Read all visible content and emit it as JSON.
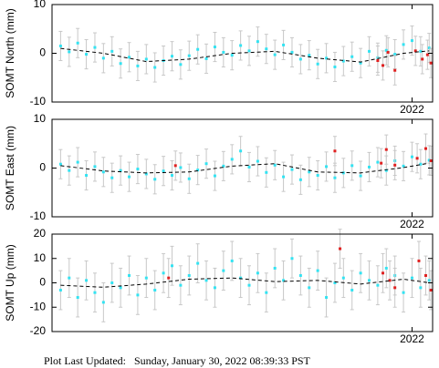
{
  "chart_data": [
    {
      "type": "scatter",
      "y_label": "SOMT North (mm)",
      "xlim": [
        2019.9,
        2022.12
      ],
      "xticks": [
        2022
      ],
      "ylim": [
        -10,
        10
      ],
      "yticks": [
        -10,
        0,
        10
      ],
      "series": [
        {
          "color": "#33e3f2",
          "error": 3,
          "x": [
            2019.95,
            2020.0,
            2020.05,
            2020.1,
            2020.15,
            2020.2,
            2020.25,
            2020.3,
            2020.35,
            2020.4,
            2020.45,
            2020.5,
            2020.55,
            2020.6,
            2020.65,
            2020.7,
            2020.75,
            2020.8,
            2020.85,
            2020.9,
            2020.95,
            2021.0,
            2021.05,
            2021.1,
            2021.15,
            2021.2,
            2021.25,
            2021.3,
            2021.35,
            2021.4,
            2021.45,
            2021.5,
            2021.55,
            2021.6,
            2021.65,
            2021.7,
            2021.75,
            2021.8,
            2021.85,
            2021.9,
            2021.95,
            2022.0,
            2022.05,
            2022.1
          ],
          "values": [
            1.5,
            0.3,
            2.1,
            -0.2,
            1.2,
            -1.0,
            0.4,
            -2.1,
            -0.8,
            -2.6,
            -1.2,
            -2.9,
            -1.5,
            -0.6,
            -2.3,
            -0.5,
            0.8,
            -1.1,
            1.3,
            0.2,
            -0.4,
            1.6,
            0.5,
            2.4,
            0.9,
            -0.3,
            1.7,
            0.2,
            -1.2,
            -0.4,
            -2.2,
            -1.0,
            -2.8,
            -1.6,
            -0.7,
            -2.0,
            0.4,
            -0.9,
            0.6,
            -0.2,
            1.8,
            2.6,
            0.4,
            1.1
          ]
        },
        {
          "color": "#e02020",
          "error": 3,
          "x": [
            2021.8,
            2021.83,
            2021.86,
            2021.9,
            2022.02,
            2022.06,
            2022.09,
            2022.11
          ],
          "values": [
            -1.5,
            -2.5,
            0.2,
            -3.5,
            0.5,
            -1.2,
            -0.3,
            -2.0
          ]
        },
        {
          "color": "#000000",
          "line": "dashed",
          "x": [
            2019.95,
            2020.2,
            2020.45,
            2020.7,
            2020.95,
            2021.2,
            2021.45,
            2021.7,
            2021.95,
            2022.1
          ],
          "values": [
            1,
            0,
            -1.7,
            -1.2,
            0,
            0.4,
            -1,
            -1.8,
            0,
            0.5
          ]
        }
      ]
    },
    {
      "type": "scatter",
      "y_label": "SOMT East (mm)",
      "xlim": [
        2019.9,
        2022.12
      ],
      "xticks": [
        2022
      ],
      "ylim": [
        -10,
        10
      ],
      "yticks": [
        -10,
        0,
        10
      ],
      "series": [
        {
          "color": "#33e3f2",
          "error": 3,
          "x": [
            2019.95,
            2020.0,
            2020.05,
            2020.1,
            2020.15,
            2020.2,
            2020.25,
            2020.3,
            2020.35,
            2020.4,
            2020.45,
            2020.5,
            2020.55,
            2020.6,
            2020.65,
            2020.7,
            2020.75,
            2020.8,
            2020.85,
            2020.9,
            2020.95,
            2021.0,
            2021.05,
            2021.1,
            2021.15,
            2021.2,
            2021.25,
            2021.3,
            2021.35,
            2021.4,
            2021.45,
            2021.5,
            2021.55,
            2021.6,
            2021.65,
            2021.7,
            2021.75,
            2021.8,
            2021.85,
            2021.9,
            2021.95,
            2022.0,
            2022.05,
            2022.1
          ],
          "values": [
            0.8,
            -0.5,
            1.2,
            -1.5,
            0.3,
            -0.8,
            -2.0,
            -0.5,
            -1.8,
            -0.2,
            -1.2,
            -2.3,
            -0.6,
            -1.5,
            0.1,
            -2.2,
            -0.4,
            0.9,
            -1.6,
            0.4,
            1.8,
            3.5,
            0.2,
            1.4,
            -0.9,
            0.6,
            -1.8,
            -0.3,
            -2.4,
            -0.8,
            -1.5,
            0.3,
            -2.0,
            -1.0,
            0.5,
            -1.6,
            0.2,
            1.2,
            -0.5,
            1.5,
            0.4,
            2.3,
            0.8,
            1.6
          ]
        },
        {
          "color": "#e02020",
          "error": 3,
          "x": [
            2020.62,
            2021.55,
            2021.82,
            2021.85,
            2021.9,
            2022.03,
            2022.08,
            2022.11
          ],
          "values": [
            0.5,
            3.5,
            1.0,
            3.8,
            0.6,
            2.0,
            4.0,
            1.5
          ]
        },
        {
          "color": "#000000",
          "line": "dashed",
          "x": [
            2019.95,
            2020.2,
            2020.45,
            2020.7,
            2020.95,
            2021.2,
            2021.45,
            2021.7,
            2021.95,
            2022.1
          ],
          "values": [
            0.5,
            -0.6,
            -1.0,
            -0.8,
            0.4,
            0.9,
            -0.8,
            -1.0,
            0.1,
            1.0
          ]
        }
      ]
    },
    {
      "type": "scatter",
      "y_label": "SOMT Up (mm)",
      "xlim": [
        2019.9,
        2022.12
      ],
      "xticks": [
        2022
      ],
      "ylim": [
        -20,
        20
      ],
      "yticks": [
        -20,
        -10,
        0,
        10,
        20
      ],
      "series": [
        {
          "color": "#33e3f2",
          "error": 8,
          "x": [
            2019.95,
            2020.0,
            2020.05,
            2020.1,
            2020.15,
            2020.2,
            2020.25,
            2020.3,
            2020.35,
            2020.4,
            2020.45,
            2020.5,
            2020.55,
            2020.6,
            2020.65,
            2020.7,
            2020.75,
            2020.8,
            2020.85,
            2020.9,
            2020.95,
            2021.0,
            2021.05,
            2021.1,
            2021.15,
            2021.2,
            2021.25,
            2021.3,
            2021.35,
            2021.4,
            2021.45,
            2021.5,
            2021.55,
            2021.6,
            2021.65,
            2021.7,
            2021.75,
            2021.8,
            2021.85,
            2021.9,
            2021.95,
            2022.0,
            2022.05,
            2022.1
          ],
          "values": [
            -3,
            2,
            -6,
            1,
            -4,
            -8,
            0,
            -2,
            3,
            -5,
            2,
            -3,
            4,
            7,
            -1,
            3,
            8,
            1,
            -2,
            5,
            9,
            2,
            -1,
            4,
            -4,
            6,
            1,
            10,
            3,
            -2,
            5,
            -6,
            0,
            2,
            -3,
            4,
            1,
            -1,
            6,
            3,
            -4,
            2,
            -2,
            1
          ]
        },
        {
          "color": "#e02020",
          "error": 8,
          "x": [
            2020.58,
            2021.58,
            2021.83,
            2021.87,
            2021.9,
            2022.04,
            2022.08,
            2022.11
          ],
          "values": [
            2,
            14,
            4,
            1,
            -2,
            9,
            3,
            -3
          ]
        },
        {
          "color": "#000000",
          "line": "dashed",
          "x": [
            2019.95,
            2020.2,
            2020.45,
            2020.7,
            2020.95,
            2021.2,
            2021.45,
            2021.7,
            2021.95,
            2022.1
          ],
          "values": [
            -1,
            -1.8,
            -0.5,
            1.5,
            2,
            0.5,
            1,
            -0.5,
            1.5,
            0
          ]
        }
      ]
    }
  ],
  "footer": {
    "label": "Plot Last Updated:",
    "value": "Sunday, January 30, 2022 08:39:33 PST"
  }
}
